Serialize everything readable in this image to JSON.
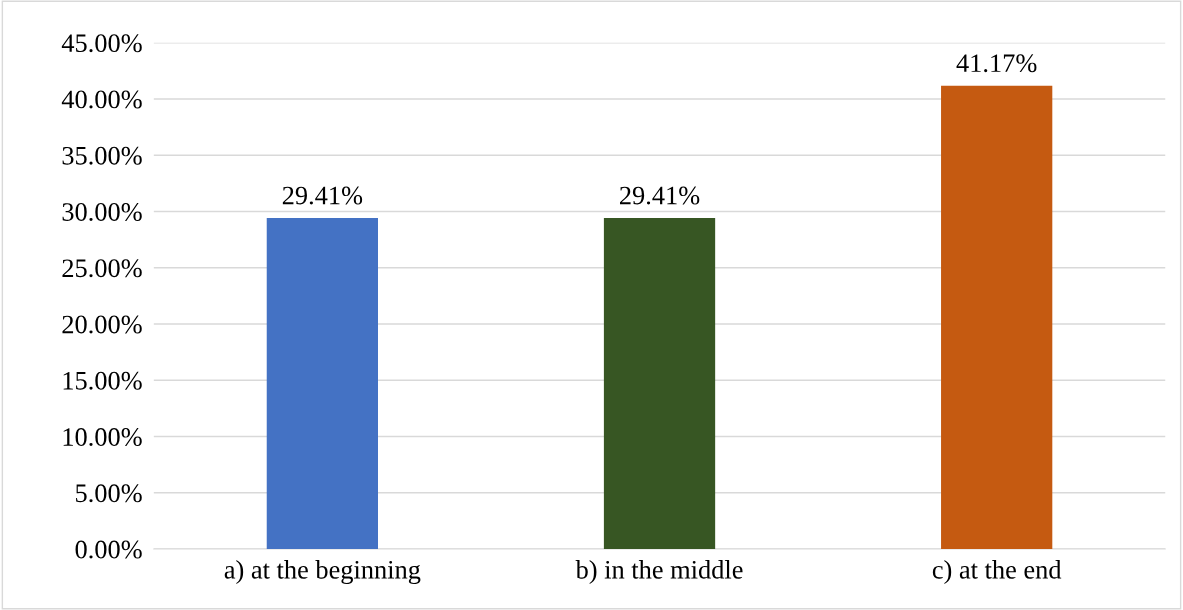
{
  "chart_data": {
    "type": "bar",
    "categories": [
      "a) at the beginning",
      "b) in the middle",
      "c) at the end"
    ],
    "values": [
      29.41,
      29.41,
      41.17
    ],
    "colors": [
      "#4472c4",
      "#375623",
      "#c55a11"
    ],
    "value_labels": [
      "29.41%",
      "29.41%",
      "41.17%"
    ],
    "ylim": [
      0,
      45
    ],
    "yticks": [
      {
        "value": 0,
        "label": "0.00%"
      },
      {
        "value": 5,
        "label": "5.00%"
      },
      {
        "value": 10,
        "label": "10.00%"
      },
      {
        "value": 15,
        "label": "15.00%"
      },
      {
        "value": 20,
        "label": "20.00%"
      },
      {
        "value": 25,
        "label": "25.00%"
      },
      {
        "value": 30,
        "label": "30.00%"
      },
      {
        "value": 35,
        "label": "35.00%"
      },
      {
        "value": 40,
        "label": "40.00%"
      },
      {
        "value": 45,
        "label": "45.00%"
      }
    ],
    "grid": "y"
  }
}
